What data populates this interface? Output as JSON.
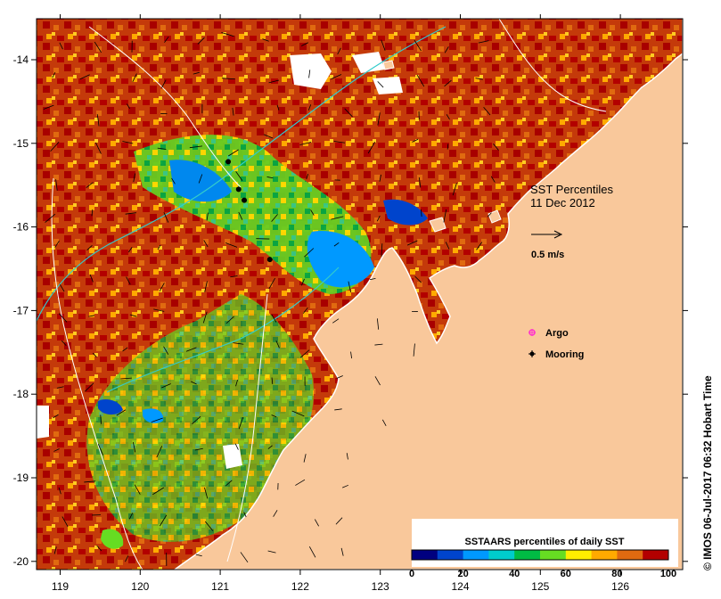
{
  "map": {
    "title_line1": "SST Percentiles",
    "date": "11 Dec 2012",
    "vector_scale_label": "0.5 m/s",
    "credit": "© IMOS 06-Jul-2017 06:32 Hobart Time",
    "colors": {
      "land": "#f9c89b",
      "cyan_contour": "#33cccc",
      "white_contour": "#ffffff",
      "argo": "#ff33cc",
      "mooring": "#000000"
    },
    "x_ticks": [
      "119",
      "120",
      "121",
      "122",
      "123",
      "124",
      "125",
      "126"
    ],
    "y_ticks": [
      "-14",
      "-15",
      "-16",
      "-17",
      "-18",
      "-19",
      "-20"
    ],
    "legend": [
      {
        "label": "Argo",
        "symbol": "argo-icon"
      },
      {
        "label": "Mooring",
        "symbol": "mooring-icon"
      }
    ],
    "moorings": [
      {
        "lon": 121.1,
        "lat": -15.22
      },
      {
        "lon": 121.23,
        "lat": -15.55
      },
      {
        "lon": 121.3,
        "lat": -15.68
      },
      {
        "lon": 121.62,
        "lat": -16.39
      }
    ]
  },
  "colorbar": {
    "title": "SSTAARS percentiles of daily SST",
    "tick_labels": [
      "0",
      "20",
      "40",
      "60",
      "80",
      "100"
    ],
    "colors": [
      "#000080",
      "#0044cc",
      "#0099ff",
      "#00cccc",
      "#00bb44",
      "#66dd22",
      "#ffee00",
      "#ffaa00",
      "#e06a10",
      "#b30000"
    ]
  }
}
